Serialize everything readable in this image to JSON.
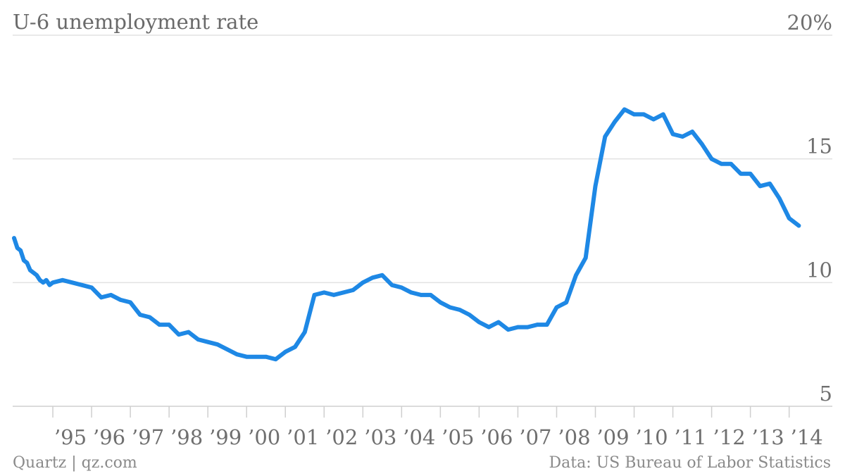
{
  "chart_data": {
    "type": "line",
    "title": "U-6 unemployment rate",
    "ylim": [
      5,
      20
    ],
    "y_ticks": [
      "20%",
      "15",
      "10",
      "5"
    ],
    "y_tick_values": [
      20,
      15,
      10,
      5
    ],
    "y_axis_position": "right",
    "grid": true,
    "x_range": [
      1994.0,
      2014.333
    ],
    "x_ticks": [
      "’95",
      "’96",
      "’97",
      "’98",
      "’99",
      "’00",
      "’01",
      "’02",
      "’03",
      "’04",
      "’05",
      "’06",
      "’07",
      "’08",
      "’09",
      "’10",
      "’11",
      "’12",
      "’13",
      "’14"
    ],
    "x_tick_values": [
      1995,
      1996,
      1997,
      1998,
      1999,
      2000,
      2001,
      2002,
      2003,
      2004,
      2005,
      2006,
      2007,
      2008,
      2009,
      2010,
      2011,
      2012,
      2013,
      2014
    ],
    "series": [
      {
        "color": "#1e88e5",
        "x": [
          1994.0,
          1994.083,
          1994.167,
          1994.25,
          1994.333,
          1994.417,
          1994.5,
          1994.583,
          1994.667,
          1994.75,
          1994.833,
          1994.917,
          1995.0,
          1995.25,
          1995.5,
          1995.75,
          1996.0,
          1996.25,
          1996.5,
          1996.75,
          1997.0,
          1997.25,
          1997.5,
          1997.75,
          1998.0,
          1998.25,
          1998.5,
          1998.75,
          1999.0,
          1999.25,
          1999.5,
          1999.75,
          2000.0,
          2000.25,
          2000.5,
          2000.75,
          2001.0,
          2001.25,
          2001.5,
          2001.75,
          2002.0,
          2002.25,
          2002.5,
          2002.75,
          2003.0,
          2003.25,
          2003.5,
          2003.75,
          2004.0,
          2004.25,
          2004.5,
          2004.75,
          2005.0,
          2005.25,
          2005.5,
          2005.75,
          2006.0,
          2006.25,
          2006.5,
          2006.75,
          2007.0,
          2007.25,
          2007.5,
          2007.75,
          2008.0,
          2008.25,
          2008.5,
          2008.75,
          2009.0,
          2009.25,
          2009.5,
          2009.75,
          2010.0,
          2010.25,
          2010.5,
          2010.75,
          2011.0,
          2011.25,
          2011.5,
          2011.75,
          2012.0,
          2012.25,
          2012.5,
          2012.75,
          2013.0,
          2013.25,
          2013.5,
          2013.75,
          2014.0,
          2014.25
        ],
        "values": [
          11.8,
          11.4,
          11.3,
          10.9,
          10.8,
          10.5,
          10.4,
          10.3,
          10.1,
          10.0,
          10.1,
          9.9,
          10.0,
          10.1,
          10.0,
          9.9,
          9.8,
          9.4,
          9.5,
          9.3,
          9.2,
          8.7,
          8.6,
          8.3,
          8.3,
          7.9,
          8.0,
          7.7,
          7.6,
          7.5,
          7.3,
          7.1,
          7.0,
          7.0,
          7.0,
          6.9,
          7.2,
          7.4,
          8.0,
          9.5,
          9.6,
          9.5,
          9.6,
          9.7,
          10.0,
          10.2,
          10.3,
          9.9,
          9.8,
          9.6,
          9.5,
          9.5,
          9.2,
          9.0,
          8.9,
          8.7,
          8.4,
          8.2,
          8.4,
          8.1,
          8.2,
          8.2,
          8.3,
          8.3,
          9.0,
          9.2,
          10.3,
          11.0,
          13.9,
          15.9,
          16.5,
          17.0,
          16.8,
          16.8,
          16.6,
          16.8,
          16.0,
          15.9,
          16.1,
          15.6,
          15.0,
          14.8,
          14.8,
          14.4,
          14.4,
          13.9,
          14.0,
          13.4,
          12.6,
          12.3
        ]
      }
    ]
  },
  "footer": {
    "source_left": "Quartz | qz.com",
    "source_right": "Data: US Bureau of Labor Statistics"
  }
}
